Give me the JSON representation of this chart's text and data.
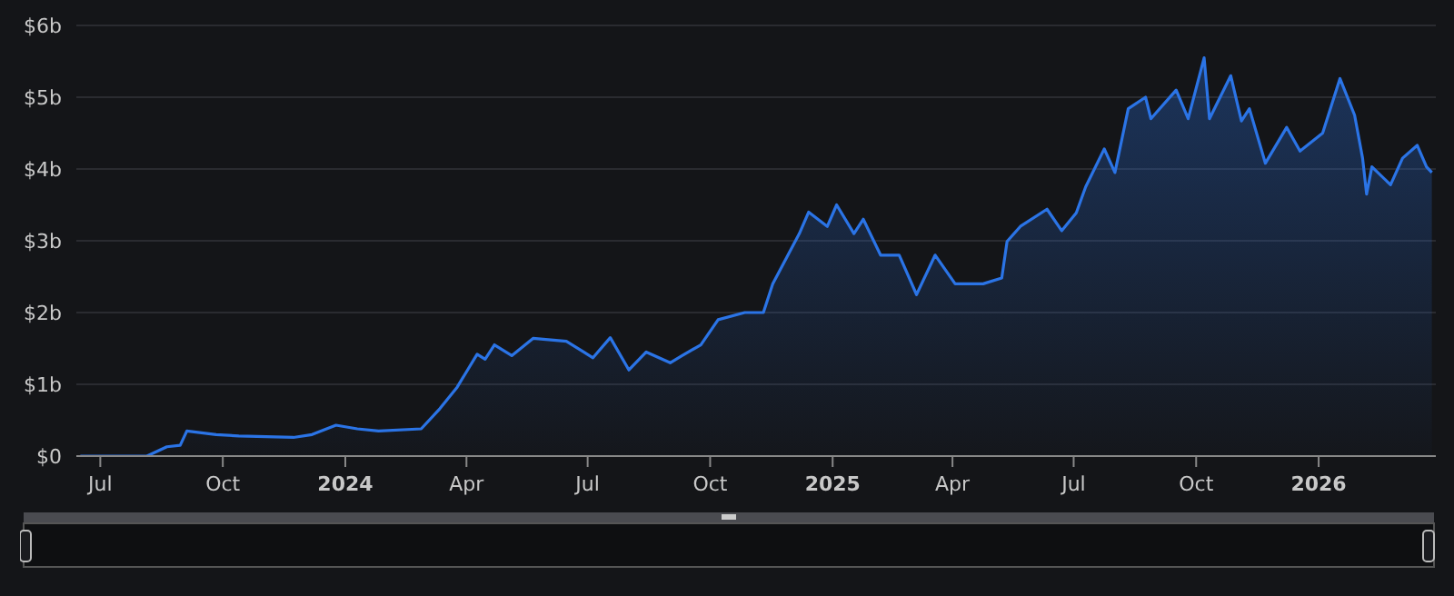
{
  "chart_data": {
    "type": "area",
    "color": "#2b74e6",
    "grid": "y",
    "legend": false,
    "marker": "none",
    "x": [
      "2023-06-16",
      "2023-08-05",
      "2023-08-20",
      "2023-08-30",
      "2023-09-04",
      "2023-09-26",
      "2023-10-13",
      "2023-11-23",
      "2023-12-07",
      "2023-12-25",
      "2024-01-10",
      "2024-01-26",
      "2024-02-27",
      "2024-03-12",
      "2024-03-25",
      "2024-04-09",
      "2024-04-15",
      "2024-04-22",
      "2024-05-05",
      "2024-05-21",
      "2024-06-15",
      "2024-06-28",
      "2024-07-05",
      "2024-07-18",
      "2024-08-01",
      "2024-08-14",
      "2024-09-01",
      "2024-09-10",
      "2024-09-24",
      "2024-10-07",
      "2024-10-27",
      "2024-11-10",
      "2024-11-17",
      "2024-12-07",
      "2024-12-14",
      "2024-12-28",
      "2025-01-04",
      "2025-01-17",
      "2025-01-24",
      "2025-02-06",
      "2025-02-20",
      "2025-03-05",
      "2025-03-19",
      "2025-04-03",
      "2025-04-24",
      "2025-05-08",
      "2025-05-12",
      "2025-05-22",
      "2025-06-11",
      "2025-06-22",
      "2025-07-03",
      "2025-07-10",
      "2025-07-24",
      "2025-08-01",
      "2025-08-11",
      "2025-08-24",
      "2025-08-28",
      "2025-09-16",
      "2025-09-25",
      "2025-10-07",
      "2025-10-11",
      "2025-10-27",
      "2025-11-04",
      "2025-11-10",
      "2025-11-22",
      "2025-12-08",
      "2025-12-18",
      "2026-01-04",
      "2026-01-17",
      "2026-01-28",
      "2026-02-03",
      "2026-02-06",
      "2026-02-10",
      "2026-02-24",
      "2026-03-05",
      "2026-03-16",
      "2026-03-23",
      "2026-03-27"
    ],
    "values": [
      0,
      0,
      0.13,
      0.15,
      0.35,
      0.3,
      0.28,
      0.26,
      0.3,
      0.43,
      0.38,
      0.35,
      0.38,
      0.66,
      0.96,
      1.42,
      1.35,
      1.55,
      1.4,
      1.64,
      1.6,
      1.45,
      1.37,
      1.65,
      1.2,
      1.45,
      1.3,
      1.4,
      1.55,
      1.9,
      2.0,
      2.0,
      2.4,
      3.1,
      3.4,
      3.2,
      3.5,
      3.1,
      3.3,
      2.8,
      2.8,
      2.25,
      2.8,
      2.4,
      2.4,
      2.48,
      2.99,
      3.2,
      3.44,
      3.14,
      3.39,
      3.75,
      4.28,
      3.95,
      4.84,
      5.0,
      4.7,
      5.1,
      4.7,
      5.55,
      4.7,
      5.3,
      4.67,
      4.84,
      4.08,
      4.58,
      4.25,
      4.5,
      5.26,
      4.75,
      4.15,
      3.65,
      4.03,
      3.78,
      4.15,
      4.33,
      4.03,
      3.95
    ],
    "xlim": [
      "2023-06-13",
      "2026-03-30"
    ],
    "xticks": [
      {
        "value": "2023-07-01",
        "label": "Jul"
      },
      {
        "value": "2023-10-01",
        "label": "Oct"
      },
      {
        "value": "2024-01-01",
        "label": "2024"
      },
      {
        "value": "2024-04-01",
        "label": "Apr"
      },
      {
        "value": "2024-07-01",
        "label": "Jul"
      },
      {
        "value": "2024-10-01",
        "label": "Oct"
      },
      {
        "value": "2025-01-01",
        "label": "2025"
      },
      {
        "value": "2025-04-01",
        "label": "Apr"
      },
      {
        "value": "2025-07-01",
        "label": "Jul"
      },
      {
        "value": "2025-10-01",
        "label": "Oct"
      },
      {
        "value": "2026-01-01",
        "label": "2026"
      }
    ],
    "ylim": [
      0,
      6
    ],
    "yticks": [
      {
        "value": 0,
        "label": "$0"
      },
      {
        "value": 1,
        "label": "$1b"
      },
      {
        "value": 2,
        "label": "$2b"
      },
      {
        "value": 3,
        "label": "$3b"
      },
      {
        "value": 4,
        "label": "$4b"
      },
      {
        "value": 5,
        "label": "$5b"
      },
      {
        "value": 6,
        "label": "$6b"
      }
    ]
  }
}
